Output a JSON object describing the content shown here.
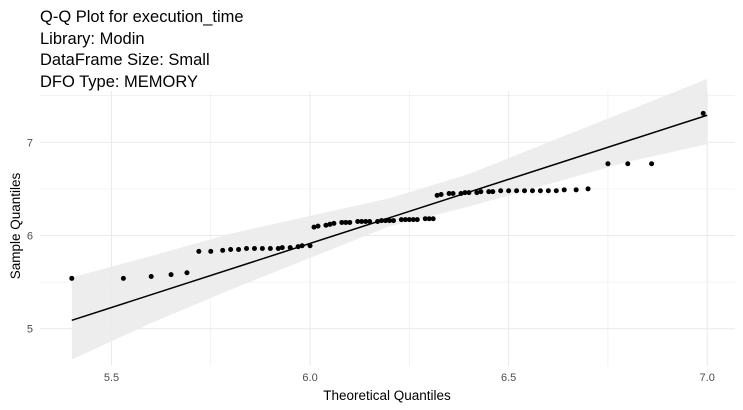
{
  "chart_data": {
    "type": "scatter",
    "title_lines": [
      "Q-Q Plot for execution_time",
      "Library: Modin",
      "DataFrame Size: Small",
      "DFO Type: MEMORY"
    ],
    "xlabel": "Theoretical Quantiles",
    "ylabel": "Sample Quantiles",
    "xlim": [
      5.32,
      7.07
    ],
    "ylim": [
      4.6,
      7.55
    ],
    "x_ticks": [
      5.5,
      6.0,
      6.5,
      7.0
    ],
    "x_tick_labels": [
      "5.5",
      "6.0",
      "6.5",
      "7.0"
    ],
    "y_ticks": [
      5,
      6,
      7
    ],
    "y_tick_labels": [
      "5",
      "6",
      "7"
    ],
    "grid": true,
    "legend": "none",
    "colors": {
      "points": "#000000",
      "line": "#000000",
      "band": "#ebebeb",
      "grid": "#ebebeb"
    },
    "reference_line": {
      "x": [
        5.4,
        7.0
      ],
      "y": [
        5.09,
        7.29
      ]
    },
    "confidence_band": {
      "x": [
        5.4,
        5.6,
        5.8,
        6.0,
        6.2,
        6.4,
        6.6,
        6.8,
        7.0
      ],
      "lower": [
        4.67,
        5.06,
        5.42,
        5.76,
        6.1,
        6.31,
        6.55,
        6.79,
        6.98
      ],
      "upper": [
        5.55,
        5.78,
        6.02,
        6.21,
        6.4,
        6.66,
        7.0,
        7.34,
        7.68
      ]
    },
    "points": [
      [
        5.4,
        5.54
      ],
      [
        5.53,
        5.54
      ],
      [
        5.6,
        5.56
      ],
      [
        5.65,
        5.58
      ],
      [
        5.69,
        5.6
      ],
      [
        5.72,
        5.83
      ],
      [
        5.75,
        5.83
      ],
      [
        5.78,
        5.84
      ],
      [
        5.8,
        5.85
      ],
      [
        5.82,
        5.85
      ],
      [
        5.84,
        5.86
      ],
      [
        5.86,
        5.86
      ],
      [
        5.88,
        5.86
      ],
      [
        5.9,
        5.86
      ],
      [
        5.92,
        5.86
      ],
      [
        5.93,
        5.87
      ],
      [
        5.95,
        5.87
      ],
      [
        5.97,
        5.88
      ],
      [
        5.98,
        5.89
      ],
      [
        6.0,
        5.89
      ],
      [
        6.01,
        6.09
      ],
      [
        6.02,
        6.1
      ],
      [
        6.04,
        6.11
      ],
      [
        6.05,
        6.12
      ],
      [
        6.06,
        6.13
      ],
      [
        6.08,
        6.14
      ],
      [
        6.09,
        6.14
      ],
      [
        6.1,
        6.14
      ],
      [
        6.12,
        6.15
      ],
      [
        6.13,
        6.15
      ],
      [
        6.14,
        6.15
      ],
      [
        6.15,
        6.15
      ],
      [
        6.17,
        6.15
      ],
      [
        6.18,
        6.16
      ],
      [
        6.19,
        6.16
      ],
      [
        6.2,
        6.16
      ],
      [
        6.21,
        6.16
      ],
      [
        6.23,
        6.17
      ],
      [
        6.24,
        6.17
      ],
      [
        6.25,
        6.17
      ],
      [
        6.26,
        6.17
      ],
      [
        6.27,
        6.17
      ],
      [
        6.29,
        6.18
      ],
      [
        6.3,
        6.18
      ],
      [
        6.31,
        6.18
      ],
      [
        6.32,
        6.43
      ],
      [
        6.33,
        6.44
      ],
      [
        6.35,
        6.45
      ],
      [
        6.36,
        6.45
      ],
      [
        6.38,
        6.45
      ],
      [
        6.39,
        6.46
      ],
      [
        6.4,
        6.46
      ],
      [
        6.42,
        6.46
      ],
      [
        6.43,
        6.47
      ],
      [
        6.45,
        6.47
      ],
      [
        6.46,
        6.47
      ],
      [
        6.48,
        6.48
      ],
      [
        6.5,
        6.48
      ],
      [
        6.52,
        6.48
      ],
      [
        6.54,
        6.48
      ],
      [
        6.56,
        6.48
      ],
      [
        6.58,
        6.48
      ],
      [
        6.6,
        6.48
      ],
      [
        6.62,
        6.48
      ],
      [
        6.64,
        6.49
      ],
      [
        6.67,
        6.49
      ],
      [
        6.7,
        6.5
      ],
      [
        6.75,
        6.77
      ],
      [
        6.8,
        6.77
      ],
      [
        6.86,
        6.77
      ],
      [
        6.99,
        7.31
      ]
    ]
  }
}
